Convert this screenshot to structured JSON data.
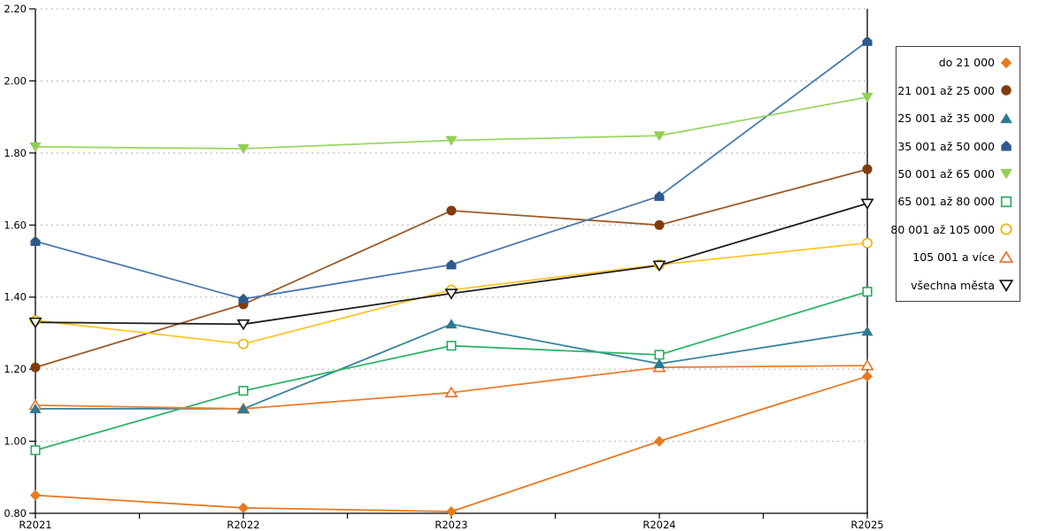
{
  "chart_data": {
    "type": "line",
    "title": "",
    "xlabel": "",
    "ylabel": "",
    "categories": [
      "R2021",
      "R2022",
      "R2023",
      "R2024",
      "R2025"
    ],
    "y_axis": {
      "min": 0.8,
      "max": 2.2,
      "step": 0.2,
      "tick_labels": [
        "0.80",
        "1.00",
        "1.20",
        "1.40",
        "1.60",
        "1.80",
        "2.00",
        "2.20"
      ]
    },
    "grid": "horizontal-dotted",
    "grid_color": "#b5b5b5",
    "axis_color": "#000000",
    "legend_position": "right",
    "series": [
      {
        "name": "do 21 000",
        "marker": "diamond",
        "marker_style": "filled",
        "color": "#e8791f",
        "line_color": "#e8791f",
        "values": [
          0.85,
          0.815,
          0.805,
          1.0,
          1.18
        ]
      },
      {
        "name": "21 001 až 25 000",
        "marker": "circle",
        "marker_style": "filled",
        "color": "#823c0c",
        "line_color": "#9b5a28",
        "values": [
          1.205,
          1.38,
          1.64,
          1.6,
          1.755
        ]
      },
      {
        "name": "25 001 až 35 000",
        "marker": "triangle-up",
        "marker_style": "filled",
        "color": "#2b7a93",
        "line_color": "#38839b",
        "values": [
          1.09,
          1.09,
          1.325,
          1.215,
          1.305
        ]
      },
      {
        "name": "35 001 až 50 000",
        "marker": "pentagon",
        "marker_style": "filled",
        "color": "#2d5a8c",
        "line_color": "#4a79b0",
        "values": [
          1.555,
          1.395,
          1.49,
          1.68,
          2.11
        ]
      },
      {
        "name": "50 001 až 65 000",
        "marker": "triangle-down",
        "marker_style": "filled",
        "color": "#8fd052",
        "line_color": "#9bd662",
        "values": [
          1.817,
          1.812,
          1.835,
          1.848,
          1.955
        ]
      },
      {
        "name": "65 001 až 80 000",
        "marker": "square",
        "marker_style": "open",
        "color": "#27ad60",
        "line_color": "#2fb36a",
        "values": [
          0.975,
          1.14,
          1.265,
          1.24,
          1.415
        ]
      },
      {
        "name": "80 001 až 105 000",
        "marker": "circle",
        "marker_style": "open",
        "color": "#edb400",
        "line_color": "#ffc52e",
        "values": [
          1.335,
          1.27,
          1.42,
          1.49,
          1.55
        ]
      },
      {
        "name": "105 001 a více",
        "marker": "triangle-up",
        "marker_style": "open",
        "color": "#e86f2b",
        "line_color": "#ed7d31",
        "values": [
          1.1,
          1.09,
          1.135,
          1.205,
          1.21
        ]
      },
      {
        "name": "všechna města",
        "marker": "triangle-down",
        "marker_style": "open",
        "color": "#111111",
        "line_color": "#1c1c1c",
        "values": [
          1.33,
          1.325,
          1.41,
          1.488,
          1.66
        ]
      }
    ]
  }
}
